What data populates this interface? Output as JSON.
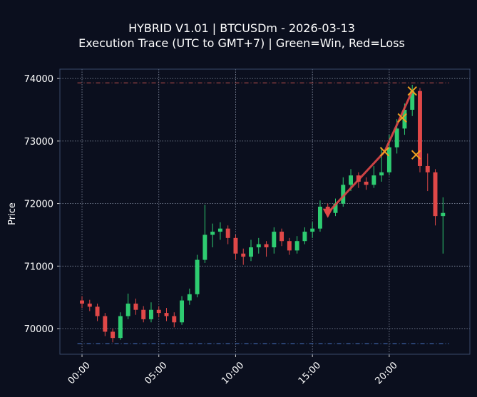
{
  "chart_data": {
    "type": "candlestick",
    "title": "HYBRID V1.01 | BTCUSDm - 2026-03-13",
    "subtitle": "Execution Trace (UTC to GMT+7) | Green=Win, Red=Loss",
    "ylabel": "Price",
    "x": [
      0,
      0.5,
      1,
      1.5,
      2,
      2.5,
      3,
      3.5,
      4,
      4.5,
      5,
      5.5,
      6,
      6.5,
      7,
      7.5,
      8,
      8.5,
      9,
      9.5,
      10,
      10.5,
      11,
      11.5,
      12,
      12.5,
      13,
      13.5,
      14,
      14.5,
      15,
      15.5,
      16,
      16.5,
      17,
      17.5,
      18,
      18.5,
      19,
      19.5,
      20,
      20.5,
      21,
      21.5,
      22,
      22.5,
      23,
      23.5
    ],
    "open": [
      70450,
      70400,
      70350,
      70200,
      69950,
      69850,
      70200,
      70400,
      70300,
      70150,
      70300,
      70250,
      70200,
      70100,
      70450,
      70550,
      71100,
      71500,
      71550,
      71600,
      71450,
      71200,
      71150,
      71300,
      71350,
      71300,
      71550,
      71400,
      71250,
      71400,
      71550,
      71600,
      71950,
      71850,
      72000,
      72300,
      72450,
      72350,
      72300,
      72450,
      72500,
      72900,
      73200,
      73500,
      73800,
      72600,
      72500,
      71800
    ],
    "high": [
      70520,
      70460,
      70400,
      70250,
      70000,
      70260,
      70560,
      70480,
      70360,
      70420,
      70360,
      70330,
      70260,
      70520,
      70640,
      71180,
      71980,
      71680,
      71700,
      71650,
      71500,
      71280,
      71420,
      71450,
      71400,
      71620,
      71600,
      71450,
      71480,
      71620,
      71700,
      72050,
      72000,
      72080,
      72420,
      72550,
      72500,
      72420,
      72600,
      72900,
      73100,
      73350,
      73600,
      73900,
      73850,
      72800,
      72550,
      72100
    ],
    "low": [
      70330,
      70280,
      70120,
      69880,
      69780,
      69820,
      70150,
      70220,
      70100,
      70100,
      70180,
      70120,
      70020,
      70060,
      70380,
      70500,
      71050,
      71300,
      71420,
      71350,
      71100,
      71020,
      71080,
      71200,
      71150,
      71200,
      71320,
      71180,
      71200,
      71350,
      71450,
      71550,
      71780,
      71800,
      71950,
      72200,
      72250,
      72220,
      72250,
      72350,
      72450,
      72800,
      73100,
      73400,
      72500,
      72200,
      71650,
      71200
    ],
    "close": [
      70400,
      70350,
      70200,
      69950,
      69850,
      70200,
      70400,
      70300,
      70150,
      70300,
      70250,
      70200,
      70100,
      70450,
      70550,
      71100,
      71500,
      71550,
      71600,
      71450,
      71200,
      71150,
      71300,
      71350,
      71300,
      71550,
      71400,
      71250,
      71400,
      71550,
      71600,
      71950,
      71850,
      72000,
      72300,
      72450,
      72350,
      72300,
      72450,
      72500,
      72900,
      73200,
      73500,
      73800,
      72600,
      72500,
      71800,
      71850
    ],
    "up_color": "#2ecc71",
    "down_color": "#e04848",
    "xlim": [
      -1.44,
      25.25
    ],
    "ylim": [
      69590,
      74150
    ],
    "xticks": [
      {
        "value": 0,
        "label": "00:00"
      },
      {
        "value": 5,
        "label": "05:00"
      },
      {
        "value": 10,
        "label": "10:00"
      },
      {
        "value": 15,
        "label": "15:00"
      },
      {
        "value": 20,
        "label": "20:00"
      }
    ],
    "yticks": [
      70000,
      71000,
      72000,
      73000,
      74000
    ],
    "grid": true,
    "hlines": [
      {
        "value": 73930,
        "color": "#c0504d",
        "x": [
          -0.3,
          23.9
        ]
      },
      {
        "value": 69760,
        "color": "#4a78c8",
        "x": [
          -0.3,
          23.9
        ]
      }
    ],
    "trace": {
      "x": [
        16,
        19.7,
        21.5
      ],
      "y": [
        71850,
        72830,
        73800
      ],
      "color": "#e04848"
    },
    "entries": {
      "x": [
        16
      ],
      "y": [
        71850
      ],
      "color": "#e04848"
    },
    "exits": {
      "x": [
        19.7,
        20.85,
        21.5,
        21.75
      ],
      "y": [
        72830,
        73370,
        73800,
        72780
      ],
      "color": "#f0a020"
    }
  }
}
